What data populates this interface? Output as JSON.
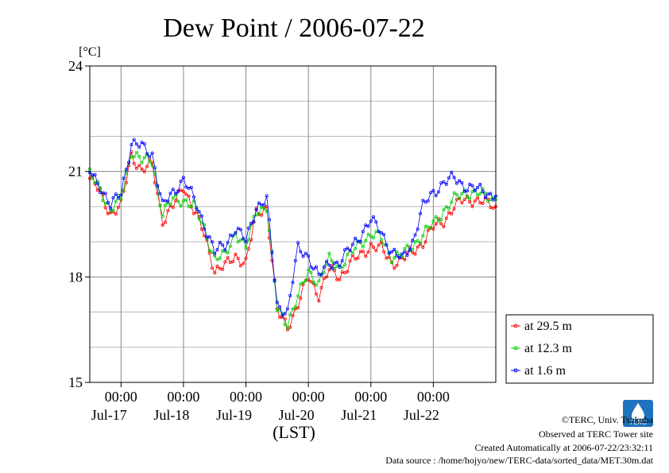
{
  "chart_data": {
    "type": "line",
    "title": "Dew Point / 2006-07-22",
    "ylabel": "[°C]",
    "xlabel": "(LST)",
    "ylim": [
      15,
      24
    ],
    "yticks": [
      15,
      18,
      21,
      24
    ],
    "x_range_days": [
      "2006-07-16T12:00",
      "2006-07-22T24:00"
    ],
    "x_tick_labels": [
      {
        "time": "00:00",
        "date": "Jul-17"
      },
      {
        "time": "00:00",
        "date": "Jul-18"
      },
      {
        "time": "00:00",
        "date": "Jul-19"
      },
      {
        "time": "00:00",
        "date": "Jul-20"
      },
      {
        "time": "00:00",
        "date": "Jul-21"
      },
      {
        "time": "00:00",
        "date": "Jul-22"
      }
    ],
    "grid": true,
    "legend_position": "bottom-right",
    "x_hours": [
      0,
      4,
      8,
      12,
      16,
      20,
      24,
      28,
      32,
      36,
      40,
      44,
      48,
      52,
      56,
      60,
      64,
      68,
      72,
      76,
      80,
      84,
      88,
      92,
      96,
      100,
      104,
      108,
      112,
      116,
      120,
      124,
      128,
      132,
      136,
      140,
      144,
      148,
      152,
      156
    ],
    "series": [
      {
        "name": "at 29.5 m",
        "color": "#ff0000",
        "values": [
          20.8,
          20.4,
          19.8,
          20.0,
          21.5,
          21.0,
          21.2,
          19.6,
          20.0,
          20.6,
          19.9,
          19.2,
          18.2,
          18.3,
          18.6,
          18.4,
          19.8,
          20.0,
          17.0,
          16.6,
          17.2,
          18.0,
          17.5,
          18.2,
          18.0,
          18.4,
          18.6,
          18.9,
          18.8,
          18.4,
          18.5,
          18.7,
          19.0,
          19.4,
          19.6,
          20.0,
          20.2,
          20.2,
          20.1,
          20.0
        ]
      },
      {
        "name": "at 12.3 m",
        "color": "#00cc00",
        "values": [
          20.9,
          20.5,
          19.9,
          20.2,
          21.6,
          21.3,
          21.3,
          19.8,
          20.2,
          20.2,
          20.0,
          19.4,
          18.5,
          18.6,
          19.3,
          18.8,
          19.9,
          20.0,
          17.1,
          16.7,
          17.4,
          18.2,
          17.8,
          18.5,
          18.3,
          18.6,
          19.0,
          19.2,
          19.1,
          18.6,
          18.6,
          18.9,
          19.2,
          19.5,
          19.9,
          20.2,
          20.4,
          20.4,
          20.3,
          20.2
        ]
      },
      {
        "name": "at 1.6 m",
        "color": "#0000ff",
        "values": [
          21.0,
          20.6,
          20.0,
          20.4,
          21.8,
          21.7,
          21.5,
          20.0,
          20.4,
          20.8,
          20.2,
          19.5,
          18.7,
          18.9,
          19.4,
          19.0,
          20.0,
          20.2,
          17.2,
          17.0,
          18.8,
          18.6,
          18.0,
          18.4,
          18.4,
          18.8,
          19.2,
          19.6,
          19.3,
          18.7,
          18.5,
          19.0,
          20.0,
          20.4,
          20.7,
          20.8,
          20.6,
          20.5,
          20.4,
          20.3
        ]
      }
    ]
  },
  "footer": {
    "copyright": "©TERC, Univ. Tsukuba",
    "observed": "Observed at TERC Tower site",
    "created": "Created Automatically at 2006-07-22/23:32:11",
    "source": "Data source : /home/hojyo/new/TERC-data/sorted_data/MET.30m.dat"
  },
  "logo": {
    "text": "TERC",
    "color": "#1e73be"
  }
}
